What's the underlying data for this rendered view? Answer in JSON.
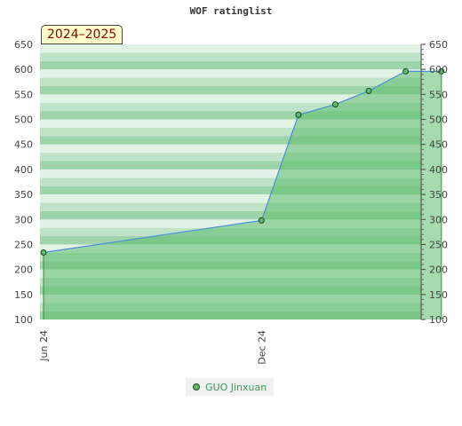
{
  "chart_data": {
    "type": "area",
    "title": "WOF ratinglist",
    "badge": "2024–2025",
    "ylim": [
      100,
      650
    ],
    "yticks": [
      100,
      150,
      200,
      250,
      300,
      350,
      400,
      450,
      500,
      550,
      600,
      650
    ],
    "xlim": [
      "2024-05-29",
      "2025-04-14"
    ],
    "xticks": [
      {
        "date": "2024-06-01",
        "label": "Jun 24"
      },
      {
        "date": "2024-12-01",
        "label": "Dec 24"
      }
    ],
    "series": [
      {
        "name": "GUO Jinxuan",
        "color": "#5dbb6e",
        "points": [
          {
            "x": "2024-06-01",
            "y": 234
          },
          {
            "x": "2024-12-01",
            "y": 298
          },
          {
            "x": "2025-01-01",
            "y": 509
          },
          {
            "x": "2025-02-01",
            "y": 530
          },
          {
            "x": "2025-03-01",
            "y": 557
          },
          {
            "x": "2025-04-01",
            "y": 596
          },
          {
            "x": "2025-05-01",
            "y": 596
          }
        ]
      }
    ],
    "grid": true,
    "legend_position": "bottom"
  }
}
